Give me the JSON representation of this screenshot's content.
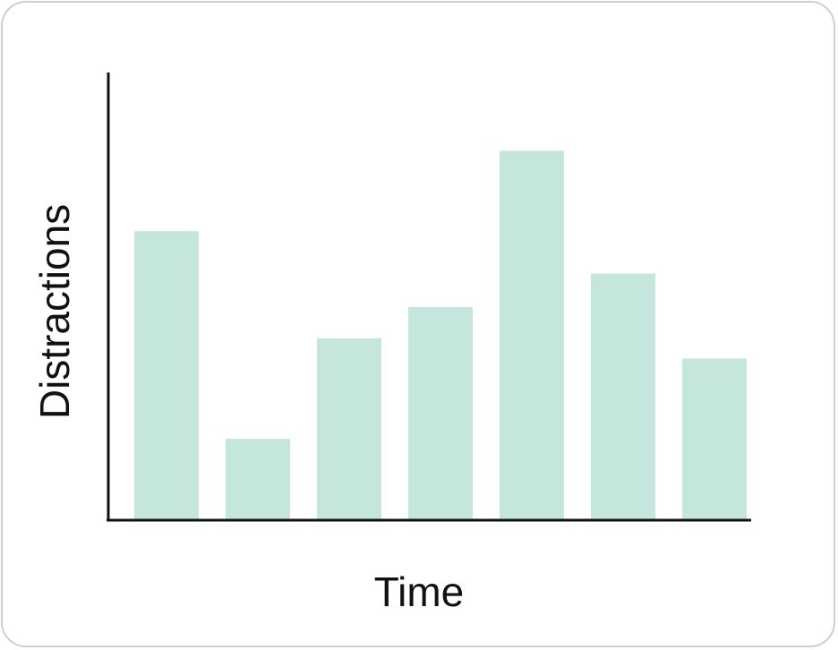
{
  "chart_data": {
    "type": "bar",
    "title": "",
    "xlabel": "Time",
    "ylabel": "Distractions",
    "categories": [
      "",
      "",
      "",
      "",
      "",
      "",
      ""
    ],
    "values": [
      6.45,
      1.8,
      4.05,
      4.75,
      8.25,
      5.5,
      3.6
    ],
    "ylim": [
      0,
      10
    ],
    "grid": false,
    "legend": "none",
    "colors": {
      "bar": "#c5e6dc",
      "axis": "#111111",
      "border": "#cfcfcf"
    }
  }
}
